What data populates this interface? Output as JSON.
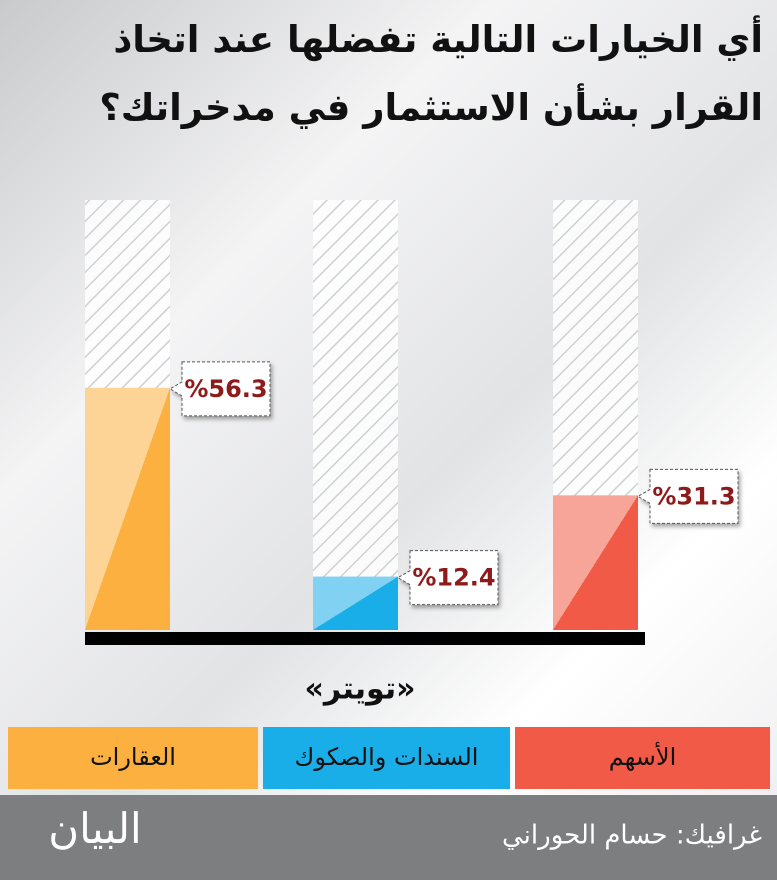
{
  "chart_data": {
    "type": "bar",
    "title": [
      "أي الخيارات التالية تفضلها عند اتخاذ",
      "القرار بشأن الاستثمار في مدخراتك؟"
    ],
    "categories": [
      "العقارات",
      "السندات والصكوك",
      "الأسهم"
    ],
    "values": [
      56.3,
      12.4,
      31.3
    ],
    "value_labels": [
      "%56.3",
      "%12.4",
      "%31.3"
    ],
    "colors": [
      "#fbb040",
      "#1aaee8",
      "#f15a46"
    ],
    "ylim": [
      0,
      100
    ],
    "source": "«تويتر»",
    "credit": "غرافيك: حسام الحوراني",
    "logo": "البيان"
  }
}
